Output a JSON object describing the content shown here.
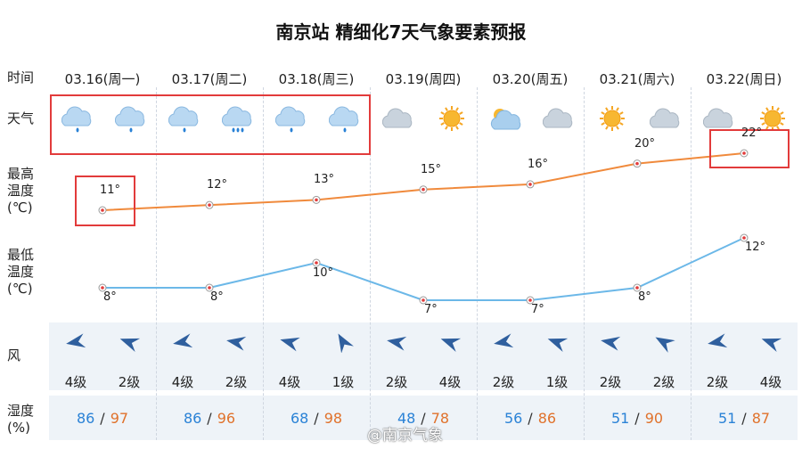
{
  "title": "南京站 精细化7天气象要素预报",
  "row_labels": {
    "time": "时间",
    "weather": "天气",
    "tmax_1": "最高",
    "tmax_2": "温度",
    "tmax_3": "(℃)",
    "tmin_1": "最低",
    "tmin_2": "温度",
    "tmin_3": "(℃)",
    "wind": "风",
    "hum_1": "湿度",
    "hum_2": "(%)"
  },
  "days": [
    {
      "date": "03.16(周一)",
      "icons": [
        "cloud-rain-icon",
        "cloud-rain-icon"
      ],
      "tmax": "11°",
      "tmin": "8°",
      "wind": [
        "4级",
        "2级"
      ],
      "hum": [
        "86",
        "97"
      ]
    },
    {
      "date": "03.17(周二)",
      "icons": [
        "cloud-rain-icon",
        "cloud-rain-heavy-icon"
      ],
      "tmax": "12°",
      "tmin": "8°",
      "wind": [
        "4级",
        "2级"
      ],
      "hum": [
        "86",
        "96"
      ]
    },
    {
      "date": "03.18(周三)",
      "icons": [
        "cloud-rain-icon",
        "cloud-rain-icon"
      ],
      "tmax": "13°",
      "tmin": "10°",
      "wind": [
        "4级",
        "1级"
      ],
      "hum": [
        "68",
        "98"
      ]
    },
    {
      "date": "03.19(周四)",
      "icons": [
        "cloud-icon",
        "sun-icon"
      ],
      "tmax": "15°",
      "tmin": "7°",
      "wind": [
        "2级",
        "4级"
      ],
      "hum": [
        "48",
        "78"
      ]
    },
    {
      "date": "03.20(周五)",
      "icons": [
        "partly-cloudy-icon",
        "cloud-icon"
      ],
      "tmax": "16°",
      "tmin": "7°",
      "wind": [
        "2级",
        "1级"
      ],
      "hum": [
        "56",
        "86"
      ]
    },
    {
      "date": "03.21(周六)",
      "icons": [
        "sun-icon",
        "cloud-icon"
      ],
      "tmax": "20°",
      "tmin": "8°",
      "wind": [
        "2级",
        "2级"
      ],
      "hum": [
        "51",
        "90"
      ]
    },
    {
      "date": "03.22(周日)",
      "icons": [
        "cloud-icon",
        "sun-icon"
      ],
      "tmax": "22°",
      "tmin": "12°",
      "wind": [
        "2级",
        "4级"
      ],
      "hum": [
        "51",
        "87"
      ]
    }
  ],
  "chart_data": {
    "type": "line",
    "categories": [
      "03.16",
      "03.17",
      "03.18",
      "03.19",
      "03.20",
      "03.21",
      "03.22"
    ],
    "series": [
      {
        "values": [
          11,
          12,
          13,
          15,
          16,
          20,
          22
        ]
      },
      {
        "values": [
          8,
          8,
          10,
          7,
          7,
          8,
          12
        ]
      }
    ]
  },
  "colors": {
    "tmax_line": "#f08a3c",
    "tmin_line": "#6cb8e8",
    "hum_morning": "#2a82d6",
    "hum_afternoon": "#e0722c",
    "highlight": "#e23b3b",
    "band": "#eef3f8"
  },
  "humidity_sep": "/",
  "watermark": "@南京气象"
}
